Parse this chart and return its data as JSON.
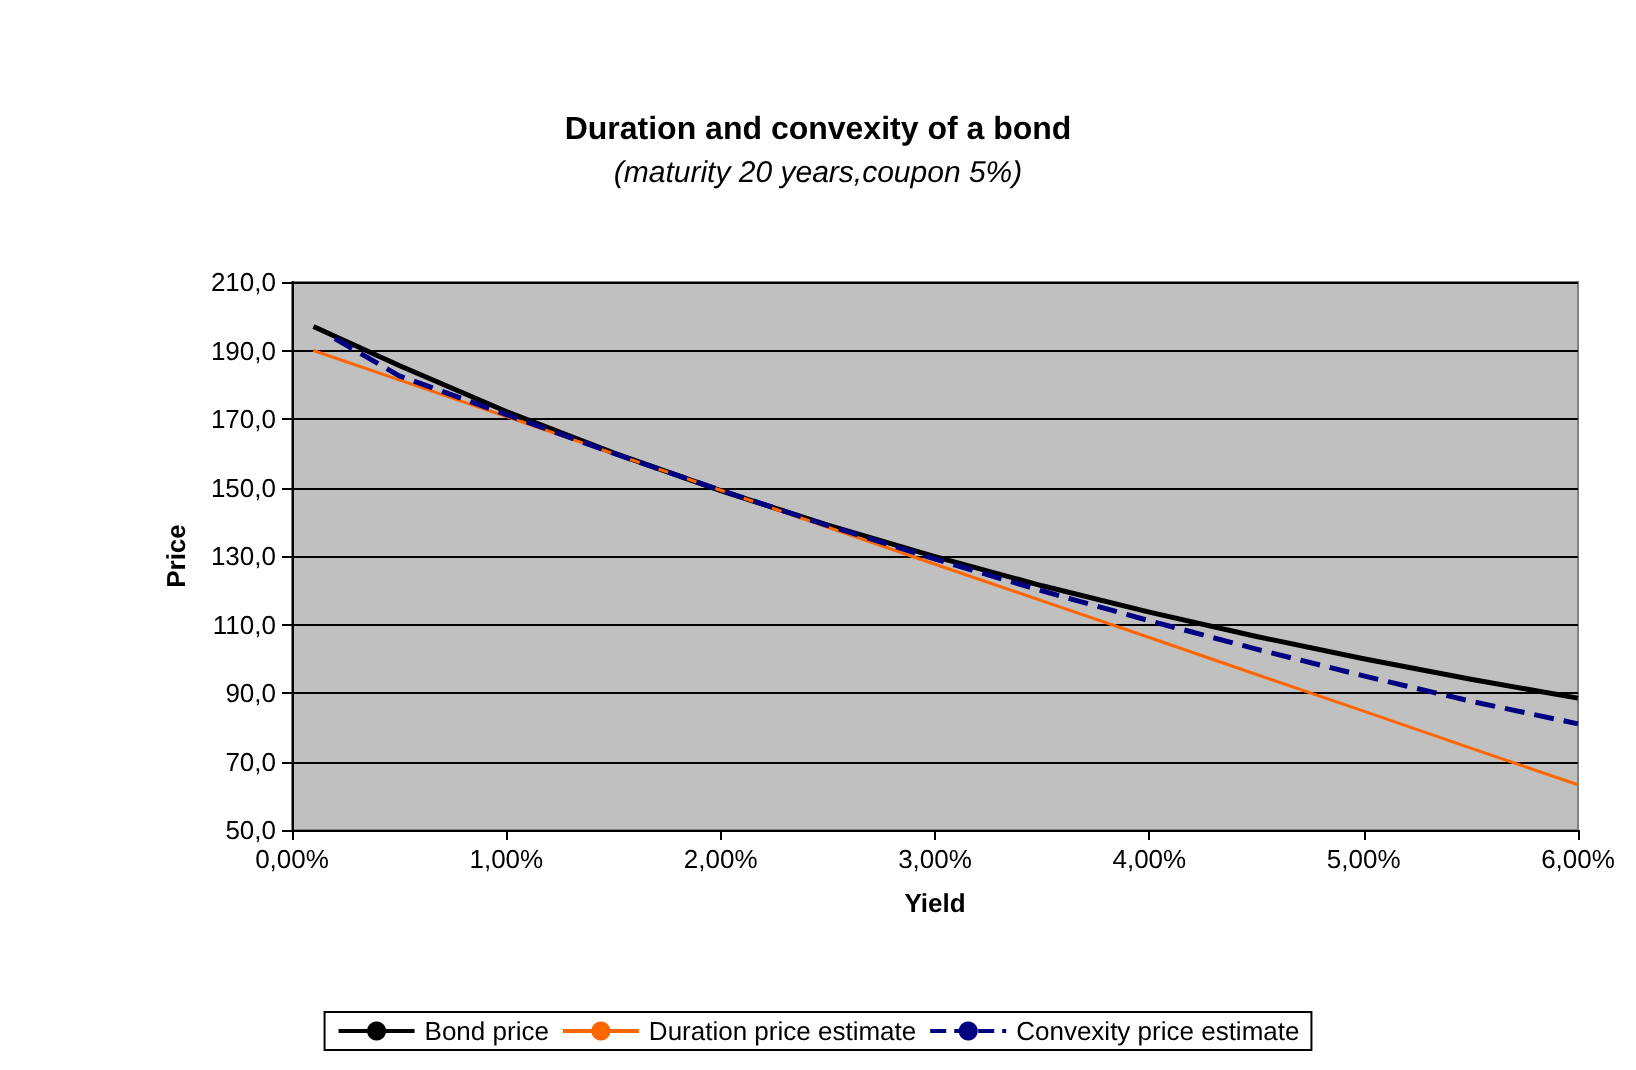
{
  "chart_data": {
    "type": "line",
    "title": "Duration and convexity of a bond",
    "subtitle": "(maturity 20 years,coupon 5%)",
    "xlabel": "Yield",
    "ylabel": "Price",
    "x": [
      0.1,
      0.5,
      1,
      1.5,
      2,
      2.5,
      3,
      3.5,
      4,
      4.5,
      5,
      5.5,
      6
    ],
    "series": [
      {
        "name": "Bond price",
        "color": "#000000",
        "line_style": "solid",
        "values": [
          197.0,
          185.6,
          172.2,
          160.1,
          149.1,
          139.0,
          129.8,
          121.3,
          113.6,
          106.5,
          100.0,
          94.0,
          88.5
        ]
      },
      {
        "name": "Duration price estimate",
        "color": "#ff6600",
        "line_style": "solid",
        "values": [
          190.0,
          181.4,
          170.7,
          159.9,
          149.2,
          138.4,
          127.6,
          116.9,
          106.2,
          95.4,
          84.7,
          73.9,
          63.2
        ]
      },
      {
        "name": "Convexity price estimate",
        "color": "#000080",
        "line_style": "dashed",
        "x": [
          0.2,
          0.5,
          1,
          1.5,
          2,
          2.5,
          3,
          3.5,
          4,
          4.5,
          5,
          5.5,
          6
        ],
        "values": [
          193.5,
          182.6,
          171.3,
          160.0,
          149.2,
          138.9,
          129.1,
          119.8,
          111.1,
          102.8,
          95.0,
          87.6,
          81.0
        ]
      }
    ],
    "xlim": [
      0,
      6
    ],
    "xticks": [
      {
        "value": 0,
        "label": "0,00%"
      },
      {
        "value": 1,
        "label": "1,00%"
      },
      {
        "value": 2,
        "label": "2,00%"
      },
      {
        "value": 3,
        "label": "3,00%"
      },
      {
        "value": 4,
        "label": "4,00%"
      },
      {
        "value": 5,
        "label": "5,00%"
      },
      {
        "value": 6,
        "label": "6,00%"
      }
    ],
    "ylim": [
      50,
      210
    ],
    "yticks": [
      {
        "value": 50,
        "label": "50,0"
      },
      {
        "value": 70,
        "label": "70,0"
      },
      {
        "value": 90,
        "label": "90,0"
      },
      {
        "value": 110,
        "label": "110,0"
      },
      {
        "value": 130,
        "label": "130,0"
      },
      {
        "value": 150,
        "label": "150,0"
      },
      {
        "value": 170,
        "label": "170,0"
      },
      {
        "value": 190,
        "label": "190,0"
      },
      {
        "value": 210,
        "label": "210,0"
      }
    ],
    "grid": "y",
    "legend": "bottom",
    "marker": "none"
  }
}
